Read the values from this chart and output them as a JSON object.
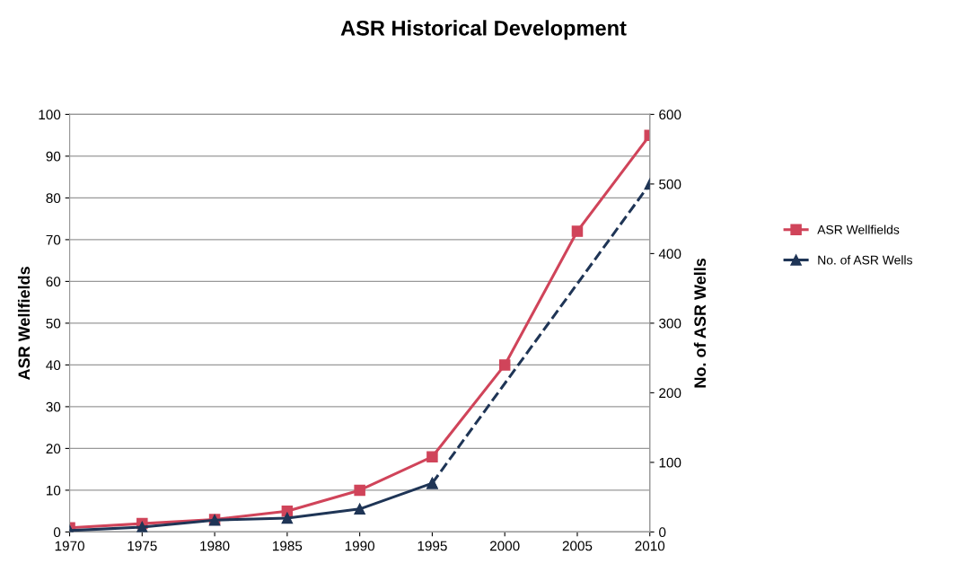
{
  "chart_data": {
    "type": "line",
    "title": "ASR Historical Development",
    "ylabel": "ASR Wellfields",
    "y2label": "No. of ASR Wells",
    "x": [
      1970,
      1975,
      1980,
      1985,
      1990,
      1995,
      2000,
      2005,
      2010
    ],
    "series": [
      {
        "name": "ASR Wellfields",
        "color": "#d0445a",
        "values": [
          1,
          2,
          3,
          5,
          10,
          18,
          40,
          72,
          95
        ],
        "marker": "square",
        "line_style": "solid"
      },
      {
        "name": "No. of ASR Wells",
        "color": "#1f3556",
        "axis": "y2",
        "values": [
          2,
          7,
          17,
          20,
          33,
          70,
          null,
          null,
          null
        ],
        "marker": "triangle",
        "line_style": "solid"
      },
      {
        "color": "#1f3556",
        "axis": "y2",
        "x": [
          1995,
          2010
        ],
        "values": [
          70,
          500
        ],
        "marker": "triangle",
        "line_style": "dashed"
      }
    ],
    "xlim": [
      1970,
      2010
    ],
    "xticks": [
      1970,
      1975,
      1980,
      1985,
      1990,
      1995,
      2000,
      2005,
      2010
    ],
    "ylim": [
      0,
      100
    ],
    "yticks": [
      0,
      10,
      20,
      30,
      40,
      50,
      60,
      70,
      80,
      90,
      100
    ],
    "y2lim": [
      0,
      600
    ],
    "y2ticks": [
      0,
      100,
      200,
      300,
      400,
      500,
      600
    ],
    "grid": "y",
    "legend": "right"
  }
}
